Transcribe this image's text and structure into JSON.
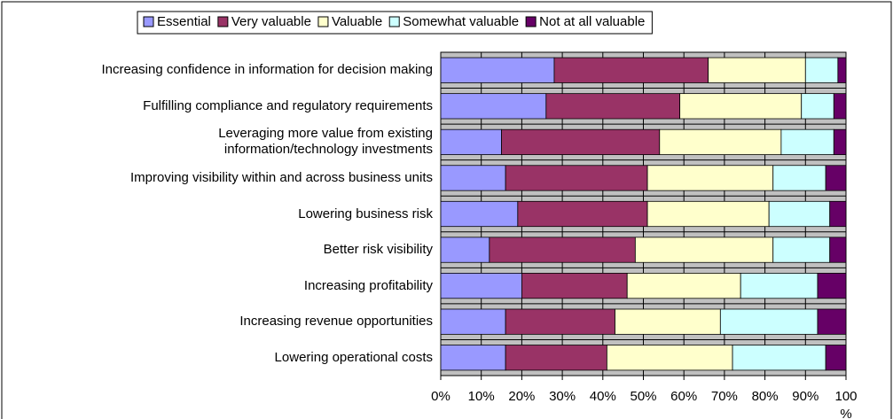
{
  "chart_data": {
    "type": "stacked_barh",
    "categories": [
      "Increasing confidence in information for decision making",
      "Fulfilling compliance and regulatory requirements",
      "Leveraging more value from existing\ninformation/technology investments",
      "Improving visibility within and across business units",
      "Lowering business risk",
      "Better risk visibility",
      "Increasing profitability",
      "Increasing revenue opportunities",
      "Lowering operational costs"
    ],
    "series": [
      {
        "name": "Essential",
        "color": "#9999ff",
        "values": [
          28,
          26,
          15,
          16,
          19,
          12,
          20,
          16,
          16
        ]
      },
      {
        "name": "Very valuable",
        "color": "#993366",
        "values": [
          38,
          33,
          39,
          35,
          32,
          36,
          26,
          27,
          25
        ]
      },
      {
        "name": "Valuable",
        "color": "#ffffcc",
        "values": [
          24,
          30,
          30,
          31,
          30,
          34,
          28,
          26,
          31
        ]
      },
      {
        "name": "Somewhat valuable",
        "color": "#ccffff",
        "values": [
          8,
          8,
          13,
          13,
          15,
          14,
          19,
          24,
          23
        ]
      },
      {
        "name": "Not at all valuable",
        "color": "#660066",
        "values": [
          2,
          3,
          3,
          5,
          4,
          4,
          7,
          7,
          5
        ]
      }
    ],
    "xlim": [
      0,
      100
    ],
    "xticks": [
      {
        "value": 0,
        "label": "0%"
      },
      {
        "value": 10,
        "label": "10%"
      },
      {
        "value": 20,
        "label": "20%"
      },
      {
        "value": 30,
        "label": "30%"
      },
      {
        "value": 40,
        "label": "40%"
      },
      {
        "value": 50,
        "label": "50%"
      },
      {
        "value": 60,
        "label": "60%"
      },
      {
        "value": 70,
        "label": "70%"
      },
      {
        "value": 80,
        "label": "80%"
      },
      {
        "value": 90,
        "label": "90%"
      },
      100
    ],
    "xlabel": "%",
    "grid": true,
    "plot_background": "#c0c0c0",
    "legend": "top"
  }
}
